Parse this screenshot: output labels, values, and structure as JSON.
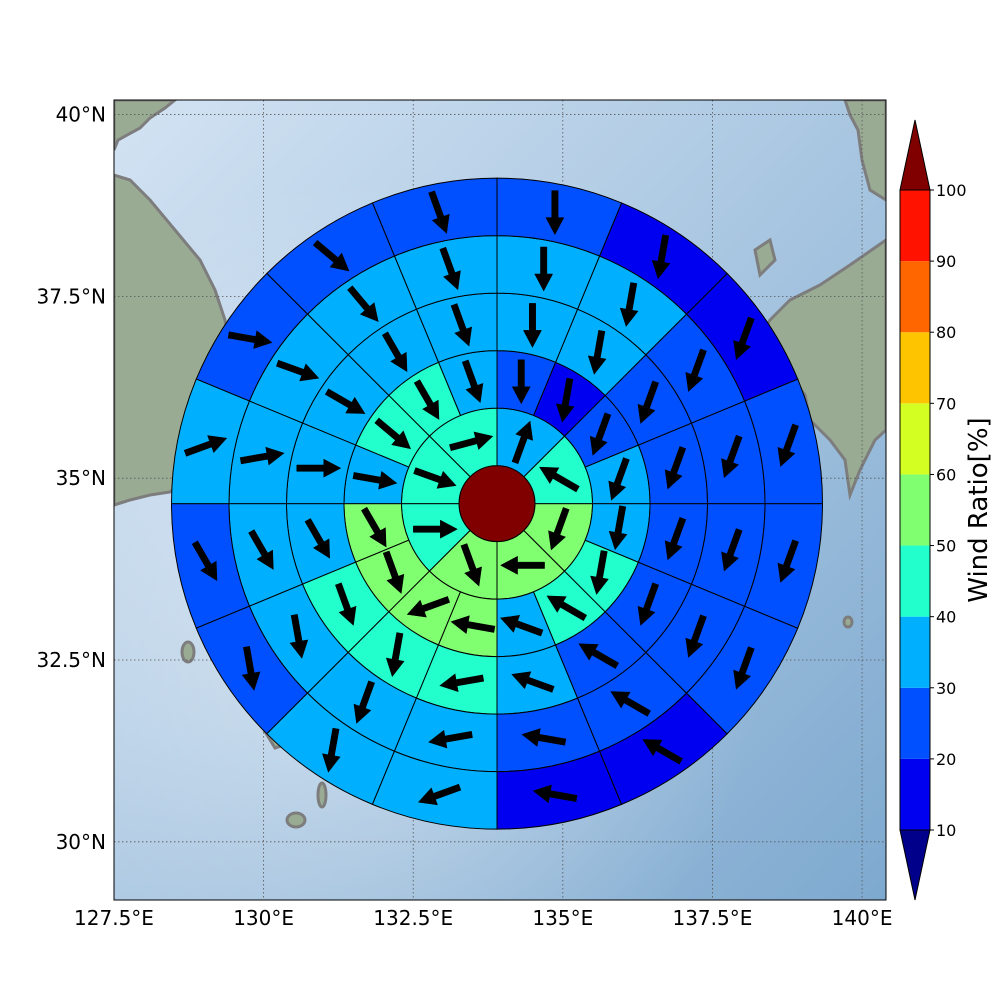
{
  "map": {
    "lat_ticks": [
      "30°N",
      "32.5°N",
      "35°N",
      "37.5°N",
      "40°N"
    ],
    "lon_ticks": [
      "127.5°E",
      "130°E",
      "132.5°E",
      "135°E",
      "137.5°E",
      "140°E"
    ],
    "lat_values": [
      30,
      32.5,
      35,
      37.5,
      40
    ],
    "lon_values": [
      127.5,
      130,
      132.5,
      135,
      137.5,
      140
    ],
    "extent": {
      "lon": [
        127.5,
        140.4
      ],
      "lat": [
        29.2,
        40.2
      ]
    },
    "center": {
      "lon": 133.9,
      "lat": 34.65
    },
    "gridlines": true,
    "colors": {
      "ocean_light": "#d3e3f3",
      "ocean_dark": "#7ea9cf",
      "land": "#9aaa92",
      "coast": "#808080"
    }
  },
  "polar_plot": {
    "rings": 6,
    "sectors_per_ring": [
      1,
      8,
      16,
      16,
      16,
      16
    ],
    "center_value": 100,
    "ratios": [
      [
        100
      ],
      [
        45,
        55,
        55,
        55,
        45,
        35,
        45,
        45
      ],
      [
        55,
        55,
        55,
        55,
        35,
        45,
        45,
        35,
        35,
        25,
        15,
        25,
        35,
        45,
        45,
        35
      ],
      [
        35,
        45,
        45,
        45,
        35,
        25,
        25,
        25,
        25,
        25,
        35,
        35,
        35,
        35,
        35,
        35
      ],
      [
        35,
        35,
        35,
        35,
        25,
        25,
        25,
        25,
        25,
        25,
        35,
        35,
        35,
        35,
        35,
        35
      ],
      [
        25,
        25,
        35,
        35,
        15,
        15,
        25,
        25,
        25,
        15,
        15,
        25,
        25,
        25,
        25,
        35
      ]
    ],
    "arrow_bearings": [
      [],
      [
        90,
        160,
        270,
        200,
        300,
        20,
        75,
        110
      ],
      [
        150,
        160,
        250,
        280,
        290,
        300,
        190,
        190,
        200,
        200,
        190,
        180,
        160,
        150,
        130,
        100
      ],
      [
        150,
        160,
        190,
        260,
        290,
        300,
        200,
        200,
        200,
        200,
        190,
        180,
        160,
        150,
        120,
        90
      ],
      [
        150,
        170,
        200,
        260,
        280,
        300,
        200,
        200,
        200,
        200,
        190,
        180,
        160,
        140,
        110,
        80
      ],
      [
        150,
        170,
        190,
        250,
        280,
        300,
        200,
        200,
        200,
        200,
        190,
        180,
        160,
        130,
        100,
        70
      ]
    ]
  },
  "colorbar": {
    "label": "Wind Ratio[%]",
    "ticks": [
      "10",
      "20",
      "30",
      "40",
      "50",
      "60",
      "70",
      "80",
      "90",
      "100"
    ],
    "bins": [
      {
        "lo": 10,
        "hi": 20,
        "color": "#0000f0"
      },
      {
        "lo": 20,
        "hi": 30,
        "color": "#0050ff"
      },
      {
        "lo": 30,
        "hi": 40,
        "color": "#00b0ff"
      },
      {
        "lo": 40,
        "hi": 50,
        "color": "#22ffcc"
      },
      {
        "lo": 50,
        "hi": 60,
        "color": "#80ff70"
      },
      {
        "lo": 60,
        "hi": 70,
        "color": "#d4ff22"
      },
      {
        "lo": 70,
        "hi": 80,
        "color": "#ffc400"
      },
      {
        "lo": 80,
        "hi": 90,
        "color": "#ff6600"
      },
      {
        "lo": 90,
        "hi": 100,
        "color": "#ff1200"
      }
    ],
    "under_color": "#00008b",
    "over_color": "#800000"
  }
}
